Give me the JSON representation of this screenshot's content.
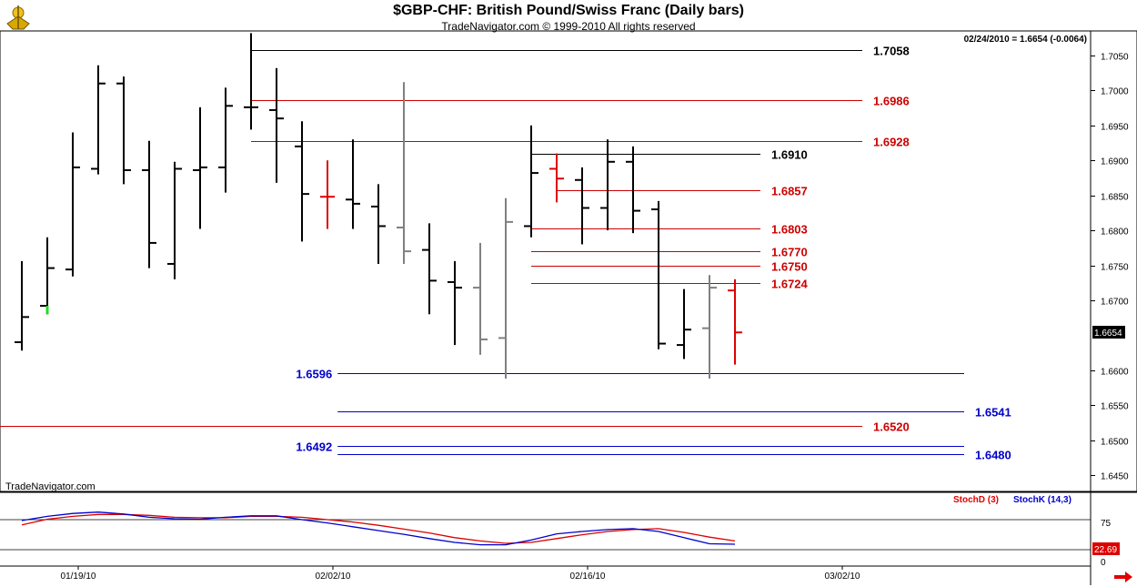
{
  "chart_data": [
    {
      "type": "ohlc",
      "title": "$GBP-CHF:  British Pound/Swiss Franc  (Daily bars)",
      "subtitle": "TradeNavigator.com © 1999-2010 All rights reserved",
      "info": "02/24/2010 = 1.6654 (-0.0064)",
      "watermark": "TradeNavigator.com",
      "ylim": [
        1.642,
        1.711
      ],
      "yticks": [
        "1.7050",
        "1.7000",
        "1.6950",
        "1.6900",
        "1.6850",
        "1.6800",
        "1.6750",
        "1.6700",
        "1.6600",
        "1.6550",
        "1.6500",
        "1.6450"
      ],
      "last_price": "1.6654",
      "xticks": [
        "01/19/10",
        "02/02/10",
        "02/16/10",
        "03/02/10"
      ],
      "bars": [
        {
          "d": 0,
          "o": 1.664,
          "h": 1.6756,
          "l": 1.6628,
          "c": 1.6676,
          "color": "#000000"
        },
        {
          "d": 1,
          "o": 1.6692,
          "h": 1.679,
          "l": 1.668,
          "c": 1.6746,
          "color": "#000000",
          "low_color": "#22dd22"
        },
        {
          "d": 2,
          "o": 1.6744,
          "h": 1.694,
          "l": 1.6734,
          "c": 1.689,
          "color": "#000000"
        },
        {
          "d": 3,
          "o": 1.6888,
          "h": 1.7036,
          "l": 1.688,
          "c": 1.701,
          "color": "#000000"
        },
        {
          "d": 4,
          "o": 1.701,
          "h": 1.702,
          "l": 1.6866,
          "c": 1.6886,
          "color": "#000000"
        },
        {
          "d": 5,
          "o": 1.6886,
          "h": 1.6928,
          "l": 1.6746,
          "c": 1.6782,
          "color": "#000000"
        },
        {
          "d": 6,
          "o": 1.6752,
          "h": 1.6898,
          "l": 1.673,
          "c": 1.6888,
          "color": "#000000"
        },
        {
          "d": 7,
          "o": 1.6886,
          "h": 1.6976,
          "l": 1.6802,
          "c": 1.689,
          "color": "#000000"
        },
        {
          "d": 8,
          "o": 1.689,
          "h": 1.7004,
          "l": 1.6854,
          "c": 1.6978,
          "color": "#000000"
        },
        {
          "d": 9,
          "o": 1.6976,
          "h": 1.7082,
          "l": 1.6944,
          "c": 1.6976,
          "color": "#000000"
        },
        {
          "d": 10,
          "o": 1.6972,
          "h": 1.7032,
          "l": 1.6868,
          "c": 1.696,
          "color": "#000000"
        },
        {
          "d": 11,
          "o": 1.692,
          "h": 1.6956,
          "l": 1.6784,
          "c": 1.6852,
          "color": "#000000"
        },
        {
          "d": 12,
          "o": 1.6848,
          "h": 1.69,
          "l": 1.6802,
          "c": 1.6848,
          "color": "#dd0000"
        },
        {
          "d": 13,
          "o": 1.6844,
          "h": 1.693,
          "l": 1.6802,
          "c": 1.6838,
          "color": "#000000"
        },
        {
          "d": 14,
          "o": 1.6834,
          "h": 1.6866,
          "l": 1.6752,
          "c": 1.6806,
          "color": "#000000"
        },
        {
          "d": 15,
          "o": 1.6804,
          "h": 1.7012,
          "l": 1.6752,
          "c": 1.677,
          "color": "#808080"
        },
        {
          "d": 16,
          "o": 1.6772,
          "h": 1.681,
          "l": 1.668,
          "c": 1.6728,
          "color": "#000000"
        },
        {
          "d": 17,
          "o": 1.6726,
          "h": 1.6756,
          "l": 1.6636,
          "c": 1.6718,
          "color": "#000000"
        },
        {
          "d": 18,
          "o": 1.6718,
          "h": 1.6782,
          "l": 1.6622,
          "c": 1.6644,
          "color": "#808080"
        },
        {
          "d": 19,
          "o": 1.6646,
          "h": 1.6846,
          "l": 1.6588,
          "c": 1.6812,
          "color": "#808080"
        },
        {
          "d": 20,
          "o": 1.6806,
          "h": 1.695,
          "l": 1.679,
          "c": 1.6882,
          "color": "#000000"
        },
        {
          "d": 21,
          "o": 1.6888,
          "h": 1.691,
          "l": 1.684,
          "c": 1.6874,
          "color": "#dd0000"
        },
        {
          "d": 22,
          "o": 1.6872,
          "h": 1.689,
          "l": 1.678,
          "c": 1.6832,
          "color": "#000000"
        },
        {
          "d": 23,
          "o": 1.6832,
          "h": 1.693,
          "l": 1.68,
          "c": 1.6898,
          "color": "#000000"
        },
        {
          "d": 24,
          "o": 1.6898,
          "h": 1.692,
          "l": 1.6796,
          "c": 1.6828,
          "color": "#000000"
        },
        {
          "d": 25,
          "o": 1.683,
          "h": 1.6842,
          "l": 1.663,
          "c": 1.6638,
          "color": "#000000"
        },
        {
          "d": 26,
          "o": 1.6636,
          "h": 1.6716,
          "l": 1.6616,
          "c": 1.6658,
          "color": "#000000"
        },
        {
          "d": 27,
          "o": 1.666,
          "h": 1.6736,
          "l": 1.6588,
          "c": 1.6718,
          "color": "#808080"
        },
        {
          "d": 28,
          "o": 1.6714,
          "h": 1.673,
          "l": 1.6608,
          "c": 1.6654,
          "color": "#dd0000"
        }
      ],
      "levels": [
        {
          "value": 1.7058,
          "label": "1.7058",
          "color": "#000000",
          "from_d": 9,
          "to_d": 33,
          "label_side": "right"
        },
        {
          "value": 1.6986,
          "label": "1.6986",
          "color": "#cc0000",
          "from_d": 9,
          "to_d": 33,
          "label_side": "right"
        },
        {
          "value": 1.6928,
          "label": "1.6928",
          "color": "#cc0000",
          "from_d": 9,
          "to_d": 33,
          "label_side": "right"
        },
        {
          "value": 1.691,
          "label": "1.6910",
          "color": "#000000",
          "from_d": 20,
          "to_d": 29,
          "label_side": "right"
        },
        {
          "value": 1.6857,
          "label": "1.6857",
          "color": "#cc0000",
          "from_d": 21,
          "to_d": 29,
          "label_side": "right"
        },
        {
          "value": 1.6803,
          "label": "1.6803",
          "color": "#cc0000",
          "from_d": 20,
          "to_d": 29,
          "label_side": "right"
        },
        {
          "value": 1.677,
          "label": "1.6770",
          "color": "#cc0000",
          "from_d": 20,
          "to_d": 29,
          "label_side": "right"
        },
        {
          "value": 1.675,
          "label": "1.6750",
          "color": "#cc0000",
          "from_d": 20,
          "to_d": 29,
          "label_side": "right"
        },
        {
          "value": 1.6724,
          "label": "1.6724",
          "color": "#cc0000",
          "from_d": 20,
          "to_d": 29,
          "label_side": "right"
        },
        {
          "value": 1.6596,
          "label": "1.6596",
          "color": "#0000cc",
          "from_d": 12.4,
          "to_d": 37,
          "label_side": "left"
        },
        {
          "value": 1.6541,
          "label": "1.6541",
          "color": "#0000cc",
          "from_d": 12.4,
          "to_d": 37,
          "label_side": "right"
        },
        {
          "value": 1.652,
          "label": "1.6520",
          "color": "#cc0000",
          "from_d": -1,
          "to_d": 33,
          "label_side": "right"
        },
        {
          "value": 1.6492,
          "label": "1.6492",
          "color": "#0000cc",
          "from_d": 12.4,
          "to_d": 37,
          "label_side": "left"
        },
        {
          "value": 1.648,
          "label": "1.6480",
          "color": "#0000cc",
          "from_d": 12.4,
          "to_d": 37,
          "label_side": "right"
        }
      ]
    },
    {
      "type": "line",
      "legend": [
        "StochD (3)",
        "StochK (14,3)"
      ],
      "ylim": [
        0,
        100
      ],
      "yticks": [
        "75",
        "0"
      ],
      "last_value": "22.69",
      "series": [
        {
          "name": "StochD (3)",
          "color": "#dd0000",
          "values": [
            64,
            76,
            82,
            86,
            86,
            84,
            80,
            79,
            79,
            82,
            82,
            80,
            75,
            70,
            63,
            55,
            47,
            37,
            30,
            25,
            27,
            35,
            43,
            50,
            54,
            56,
            48,
            38,
            30
          ]
        },
        {
          "name": "StochK (14,3)",
          "color": "#0000cc",
          "values": [
            73,
            82,
            88,
            91,
            87,
            80,
            77,
            76,
            80,
            83,
            83,
            75,
            68,
            60,
            52,
            44,
            35,
            27,
            22,
            22,
            32,
            45,
            50,
            54,
            56,
            50,
            37,
            24,
            23
          ]
        }
      ]
    }
  ]
}
